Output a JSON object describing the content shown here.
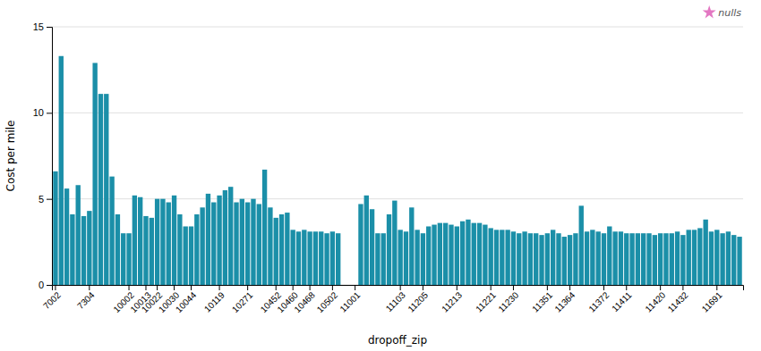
{
  "chart_data": {
    "type": "bar",
    "xlabel": "dropoff_zip",
    "ylabel": "Cost per mile",
    "color": "#1b8fa8",
    "ylim": [
      0,
      15
    ],
    "yticks": [
      0,
      5,
      10,
      15
    ],
    "grid": true,
    "legend": "upper right",
    "legend_label": "nulls",
    "categories": [
      "7002",
      null,
      null,
      null,
      null,
      null,
      "7304",
      null,
      null,
      null,
      null,
      null,
      null,
      "10002",
      null,
      null,
      "10013",
      null,
      "10022",
      null,
      null,
      "10030",
      null,
      null,
      "10044",
      null,
      null,
      null,
      null,
      "10119",
      null,
      null,
      null,
      null,
      "10271",
      null,
      null,
      null,
      null,
      "10452",
      null,
      null,
      "10460",
      null,
      null,
      "10468",
      null,
      null,
      null,
      "10502",
      null,
      null,
      null,
      "11001",
      null,
      null,
      null,
      null,
      null,
      null,
      null,
      "11103",
      null,
      null,
      null,
      "11205",
      null,
      null,
      null,
      null,
      null,
      "11213",
      null,
      null,
      null,
      null,
      null,
      "11221",
      null,
      null,
      null,
      "11230",
      null,
      null,
      null,
      null,
      null,
      "11351",
      null,
      null,
      null,
      "11364",
      null,
      null,
      null,
      null,
      null,
      "11372",
      null,
      null,
      null,
      "11411",
      null,
      null,
      null,
      null,
      null,
      "11420",
      null,
      null,
      null,
      "11432",
      null,
      null,
      null,
      null,
      null,
      "11691",
      null,
      null,
      null,
      null
    ],
    "values": [
      6.6,
      13.3,
      5.6,
      4.1,
      5.8,
      4.0,
      4.3,
      12.9,
      11.1,
      11.1,
      6.3,
      4.1,
      3.0,
      3.0,
      5.2,
      5.1,
      4.0,
      3.9,
      5.0,
      5.0,
      4.8,
      5.2,
      4.1,
      3.4,
      3.4,
      4.1,
      4.5,
      5.3,
      4.8,
      5.2,
      5.5,
      5.7,
      4.8,
      5.0,
      4.8,
      5.0,
      4.7,
      6.7,
      4.5,
      3.9,
      4.1,
      4.2,
      3.2,
      3.1,
      3.2,
      3.1,
      3.1,
      3.1,
      3.0,
      3.1,
      3.0,
      null,
      null,
      null,
      4.7,
      5.2,
      4.4,
      3.0,
      3.0,
      4.1,
      4.9,
      3.2,
      3.1,
      4.5,
      3.2,
      3.0,
      3.4,
      3.5,
      3.6,
      3.6,
      3.5,
      3.4,
      3.7,
      3.8,
      3.6,
      3.6,
      3.5,
      3.3,
      3.2,
      3.2,
      3.2,
      3.1,
      3.0,
      3.1,
      3.0,
      3.0,
      2.9,
      3.0,
      3.2,
      3.0,
      2.8,
      2.9,
      3.0,
      4.6,
      3.1,
      3.2,
      3.1,
      3.0,
      3.4,
      3.1,
      3.1,
      3.0,
      3.0,
      3.0,
      3.0,
      3.0,
      2.9,
      3.0,
      3.0,
      3.0,
      3.1,
      2.9,
      3.2,
      3.2,
      3.3,
      3.8,
      3.1,
      3.2,
      3.0,
      3.1,
      2.9,
      2.8
    ]
  }
}
